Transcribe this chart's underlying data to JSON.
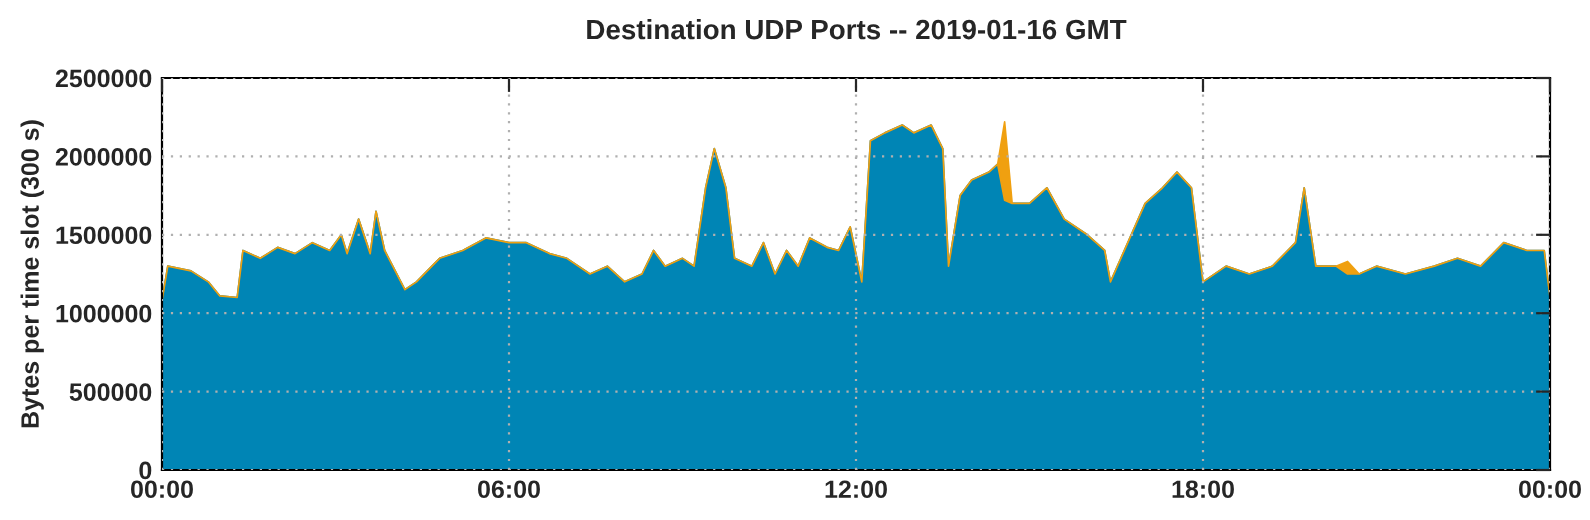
{
  "chart_data": {
    "type": "area",
    "stacked": true,
    "title": "Destination UDP Ports -- 2019-01-16 GMT",
    "ylabel": "Bytes per time slot (300 s)",
    "x": [
      0,
      0.1,
      0.5,
      0.8,
      1.0,
      1.3,
      1.4,
      1.7,
      2.0,
      2.3,
      2.6,
      2.9,
      3.1,
      3.2,
      3.4,
      3.6,
      3.7,
      3.85,
      4.2,
      4.4,
      4.8,
      5.2,
      5.6,
      6.0,
      6.3,
      6.7,
      7.0,
      7.4,
      7.7,
      8.0,
      8.3,
      8.5,
      8.7,
      9.0,
      9.2,
      9.4,
      9.55,
      9.75,
      9.9,
      10.2,
      10.4,
      10.6,
      10.8,
      11.0,
      11.2,
      11.5,
      11.7,
      11.9,
      12.1,
      12.25,
      12.5,
      12.8,
      13.0,
      13.3,
      13.5,
      13.6,
      13.8,
      14.0,
      14.3,
      14.45,
      14.57,
      14.7,
      15.0,
      15.3,
      15.6,
      16.0,
      16.3,
      16.4,
      16.7,
      17.0,
      17.3,
      17.55,
      17.8,
      18.0,
      18.4,
      18.8,
      19.2,
      19.6,
      19.75,
      19.95,
      20.3,
      20.5,
      20.7,
      21.0,
      21.5,
      22.0,
      22.4,
      22.8,
      23.2,
      23.6,
      23.9,
      24.0
    ],
    "series": [
      {
        "color": "#0085b5",
        "values": [
          1080000,
          1300000,
          1270000,
          1200000,
          1110000,
          1100000,
          1400000,
          1350000,
          1420000,
          1380000,
          1450000,
          1400000,
          1500000,
          1380000,
          1600000,
          1380000,
          1650000,
          1400000,
          1150000,
          1200000,
          1350000,
          1400000,
          1480000,
          1450000,
          1450000,
          1380000,
          1350000,
          1250000,
          1300000,
          1200000,
          1250000,
          1400000,
          1300000,
          1350000,
          1300000,
          1800000,
          2050000,
          1800000,
          1350000,
          1300000,
          1450000,
          1250000,
          1400000,
          1300000,
          1480000,
          1420000,
          1400000,
          1550000,
          1200000,
          2100000,
          2150000,
          2200000,
          2150000,
          2200000,
          2050000,
          1300000,
          1750000,
          1850000,
          1900000,
          1950000,
          1720000,
          1700000,
          1700000,
          1800000,
          1600000,
          1500000,
          1400000,
          1200000,
          1450000,
          1700000,
          1800000,
          1900000,
          1800000,
          1200000,
          1300000,
          1250000,
          1300000,
          1450000,
          1800000,
          1300000,
          1300000,
          1250000,
          1250000,
          1300000,
          1250000,
          1300000,
          1350000,
          1300000,
          1450000,
          1400000,
          1400000,
          1100000
        ]
      },
      {
        "color": "#f0a010",
        "values": [
          0,
          0,
          0,
          0,
          0,
          0,
          0,
          0,
          0,
          0,
          0,
          0,
          0,
          0,
          0,
          0,
          0,
          0,
          0,
          0,
          0,
          0,
          0,
          0,
          0,
          0,
          0,
          0,
          0,
          0,
          0,
          0,
          0,
          0,
          0,
          0,
          0,
          0,
          0,
          0,
          0,
          0,
          0,
          0,
          0,
          0,
          0,
          0,
          0,
          0,
          0,
          0,
          0,
          0,
          0,
          0,
          0,
          0,
          0,
          0,
          500000,
          0,
          0,
          0,
          0,
          0,
          0,
          0,
          0,
          0,
          0,
          0,
          0,
          0,
          0,
          0,
          0,
          0,
          0,
          0,
          0,
          80000,
          0,
          0,
          0,
          0,
          0,
          0,
          0,
          0,
          0,
          0
        ]
      }
    ],
    "xlim": [
      0,
      24
    ],
    "xticks": [
      {
        "value": 0,
        "label": "00:00"
      },
      {
        "value": 6,
        "label": "06:00"
      },
      {
        "value": 12,
        "label": "12:00"
      },
      {
        "value": 18,
        "label": "18:00"
      },
      {
        "value": 24,
        "label": "00:00"
      }
    ],
    "ylim": [
      0,
      2500000
    ],
    "yticks": [
      0,
      500000,
      1000000,
      1500000,
      2000000,
      2500000
    ],
    "grid": true,
    "legend": false
  }
}
